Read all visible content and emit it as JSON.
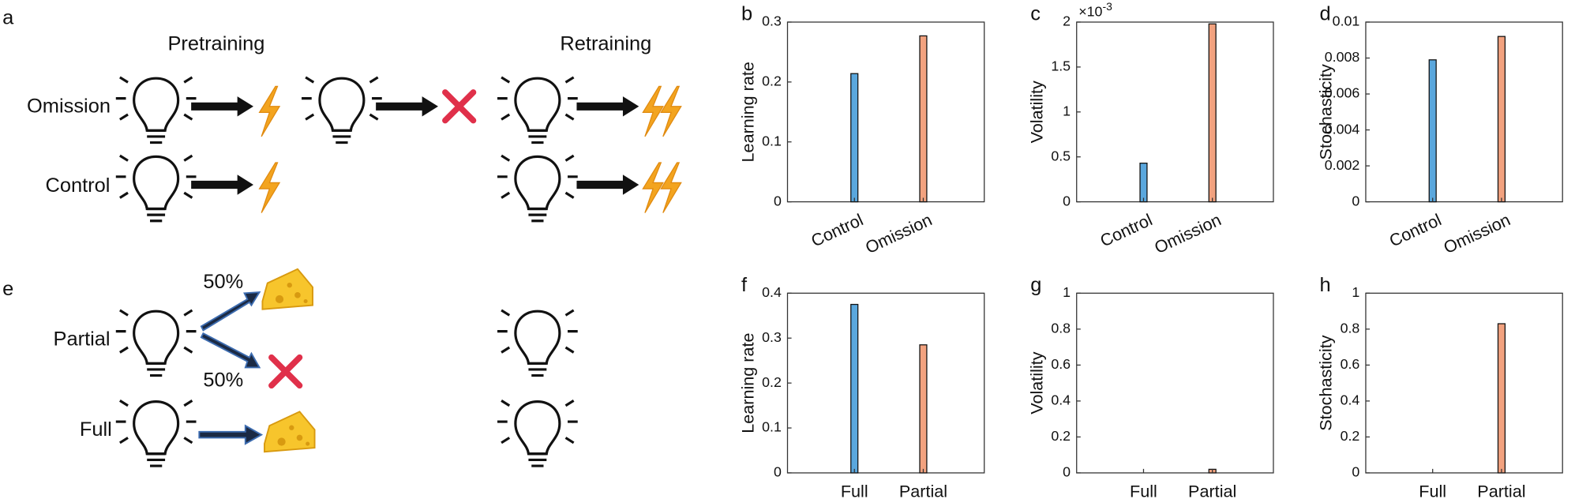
{
  "diagram": {
    "panel_a": "a",
    "panel_e": "e",
    "pretraining": "Pretraining",
    "retraining": "Retraining",
    "omission": "Omission",
    "control": "Control",
    "partial": "Partial",
    "full": "Full",
    "prob_top": "50%",
    "prob_bottom": "50%"
  },
  "chart_data": [
    {
      "type": "bar",
      "panel": "b",
      "ylabel": "Learning rate",
      "categories": [
        "Control",
        "Omission"
      ],
      "values": [
        0.214,
        0.277
      ],
      "colors": [
        "#5aa7dd",
        "#f2a27f"
      ],
      "ylim": [
        0,
        0.3
      ],
      "yticks": [
        0,
        0.1,
        0.2,
        0.3
      ]
    },
    {
      "type": "bar",
      "panel": "c",
      "ylabel": "Volatility",
      "y_multiplier": {
        "base": "×10",
        "exponent": "-3"
      },
      "categories": [
        "Control",
        "Omission"
      ],
      "values": [
        0.43,
        1.98
      ],
      "colors": [
        "#5aa7dd",
        "#f2a27f"
      ],
      "ylim": [
        0,
        2
      ],
      "yticks": [
        0,
        0.5,
        1,
        1.5,
        2
      ]
    },
    {
      "type": "bar",
      "panel": "d",
      "ylabel": "Stochasticity",
      "categories": [
        "Control",
        "Omission"
      ],
      "values": [
        0.0079,
        0.0092
      ],
      "colors": [
        "#5aa7dd",
        "#f2a27f"
      ],
      "ylim": [
        0,
        0.01
      ],
      "yticks": [
        0,
        0.002,
        0.004,
        0.006,
        0.008,
        0.01
      ]
    },
    {
      "type": "bar",
      "panel": "f",
      "ylabel": "Learning rate",
      "categories": [
        "Full",
        "Partial"
      ],
      "values": [
        0.375,
        0.285
      ],
      "colors": [
        "#5aa7dd",
        "#f2a27f"
      ],
      "ylim": [
        0,
        0.4
      ],
      "yticks": [
        0,
        0.1,
        0.2,
        0.3,
        0.4
      ]
    },
    {
      "type": "bar",
      "panel": "g",
      "ylabel": "Volatility",
      "categories": [
        "Full",
        "Partial"
      ],
      "values": [
        0,
        0.02
      ],
      "colors": [
        "#5aa7dd",
        "#f2a27f"
      ],
      "ylim": [
        0,
        1
      ],
      "yticks": [
        0,
        0.2,
        0.4,
        0.6,
        0.8,
        1
      ]
    },
    {
      "type": "bar",
      "panel": "h",
      "ylabel": "Stochasticity",
      "categories": [
        "Full",
        "Partial"
      ],
      "values": [
        0,
        0.83
      ],
      "colors": [
        "#5aa7dd",
        "#f2a27f"
      ],
      "ylim": [
        0,
        1
      ],
      "yticks": [
        0,
        0.2,
        0.4,
        0.6,
        0.8,
        1
      ]
    }
  ]
}
